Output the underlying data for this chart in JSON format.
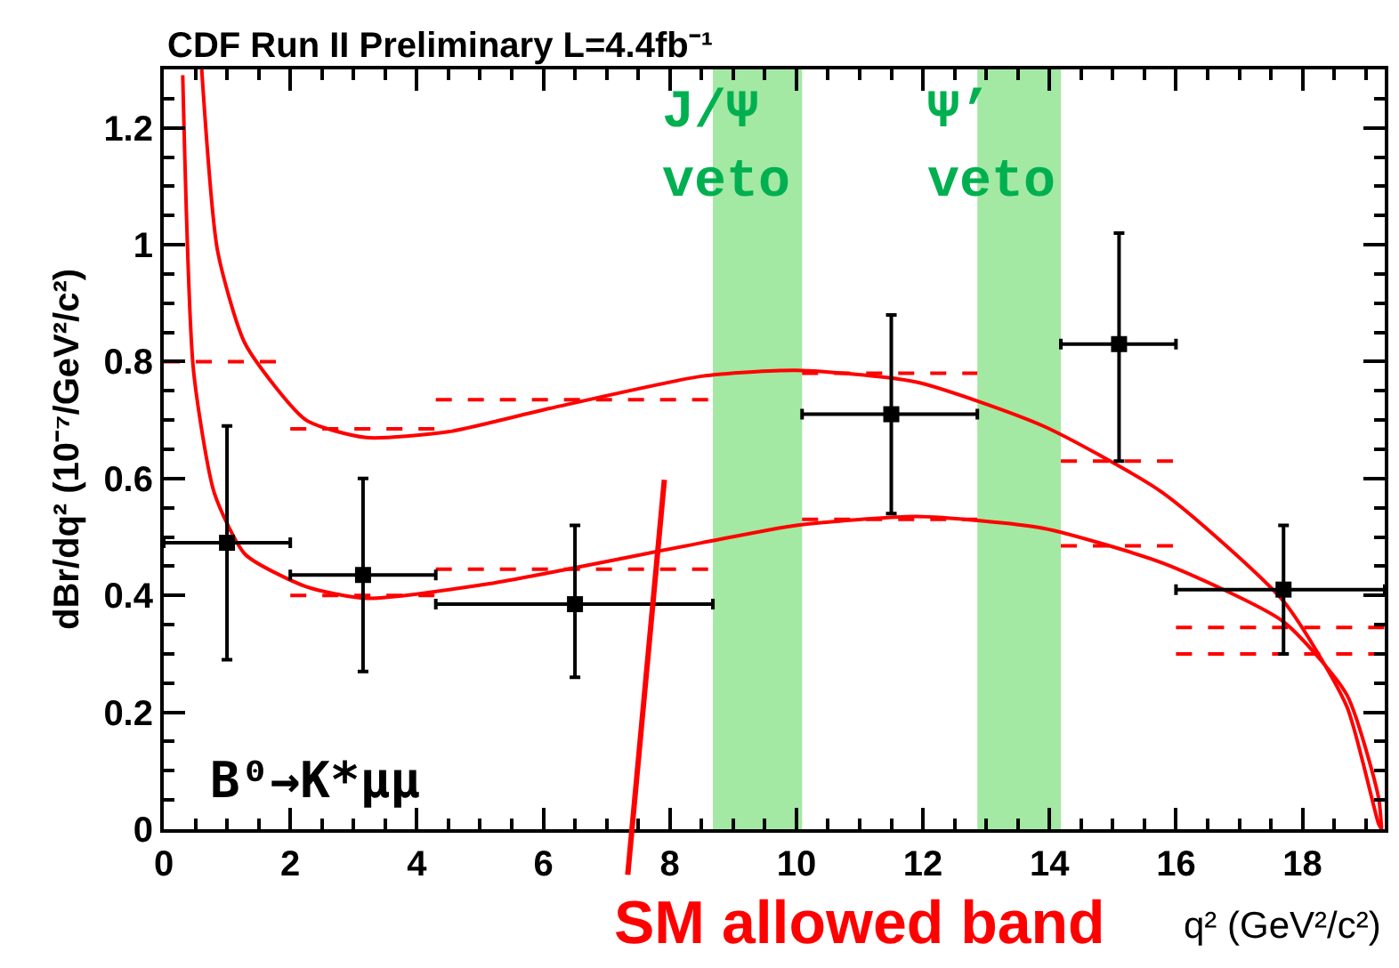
{
  "chart_data": {
    "type": "scatter",
    "title": "CDF Run II Preliminary L=4.4fb⁻¹",
    "xlabel": "q² (GeV²/c²)",
    "ylabel": "dBr/dq² (10⁻⁷/GeV²/c²)",
    "xlim": [
      0,
      19.3
    ],
    "ylim": [
      0,
      1.3
    ],
    "xticks": [
      0,
      2,
      4,
      6,
      8,
      10,
      12,
      14,
      16,
      18
    ],
    "yticks": [
      0,
      0.2,
      0.4,
      0.6,
      0.8,
      1,
      1.2
    ],
    "grid": false,
    "series": [
      {
        "type": "line",
        "color": "#ff0000",
        "line_style": "solid",
        "marker": "none",
        "x": [
          0.6,
          0.85,
          1.29,
          2.25,
          3.2,
          4.5,
          6.1,
          8.5,
          10,
          11.9,
          13.9,
          15.8,
          17.7,
          18.7,
          19.2,
          19.25
        ],
        "values": [
          1.3,
          0.99,
          0.83,
          0.7,
          0.67,
          0.68,
          0.72,
          0.775,
          0.785,
          0.765,
          0.69,
          0.575,
          0.39,
          0.21,
          0.01,
          0
        ]
      },
      {
        "type": "line",
        "color": "#ff0000",
        "line_style": "solid",
        "marker": "none",
        "x": [
          0.3,
          0.47,
          0.8,
          1.29,
          2.25,
          3.2,
          5.15,
          8.5,
          10,
          11.9,
          13.9,
          15.8,
          17.7,
          18.7,
          19.2,
          19.25
        ],
        "values": [
          1.29,
          0.785,
          0.575,
          0.47,
          0.415,
          0.395,
          0.42,
          0.49,
          0.52,
          0.535,
          0.515,
          0.455,
          0.355,
          0.23,
          0.055,
          0
        ]
      },
      {
        "type": "line",
        "color": "#ff0000",
        "line_style": "dashed",
        "marker": "none",
        "x": [
          0,
          2,
          2,
          4.3,
          4.3,
          8.68,
          10.09,
          12.86,
          14.18,
          16,
          16,
          19.3
        ],
        "values": [
          0.8,
          0.8,
          0.685,
          0.685,
          0.735,
          0.735,
          0.78,
          0.78,
          0.63,
          0.63,
          0.345,
          0.345
        ]
      },
      {
        "type": "line",
        "color": "#ff0000",
        "line_style": "dashed",
        "marker": "none",
        "x": [
          2,
          4.3,
          4.3,
          8.68,
          10.09,
          12.86,
          14.18,
          16,
          16,
          19.3
        ],
        "values": [
          0.4,
          0.4,
          0.445,
          0.445,
          0.53,
          0.53,
          0.485,
          0.485,
          0.3,
          0.3
        ]
      },
      {
        "color": "#000000",
        "marker": "square",
        "x": [
          1,
          3.15,
          6.5,
          11.5,
          15.1,
          17.7
        ],
        "values": [
          0.49,
          0.435,
          0.385,
          0.71,
          0.83,
          0.41
        ],
        "errors": [
          [
            0.29,
            0.69
          ],
          [
            0.27,
            0.6
          ],
          [
            0.26,
            0.52
          ],
          [
            0.54,
            0.88
          ],
          [
            0.63,
            1.02
          ],
          [
            0.3,
            0.52
          ]
        ],
        "xerrors": [
          [
            0,
            2
          ],
          [
            2,
            4.3
          ],
          [
            4.3,
            8.68
          ],
          [
            10.09,
            12.86
          ],
          [
            14.18,
            16
          ],
          [
            16,
            19.3
          ]
        ]
      }
    ],
    "bands": [
      {
        "axis": "x",
        "from": 8.68,
        "to": 10.09,
        "label": "J/Ψ veto",
        "color": "#33cc33"
      },
      {
        "axis": "x",
        "from": 12.86,
        "to": 14.18,
        "label": "Ψ’ veto",
        "color": "#33cc33"
      }
    ],
    "annotations": [
      "B⁰→K*μμ",
      "SM allowed band"
    ]
  }
}
